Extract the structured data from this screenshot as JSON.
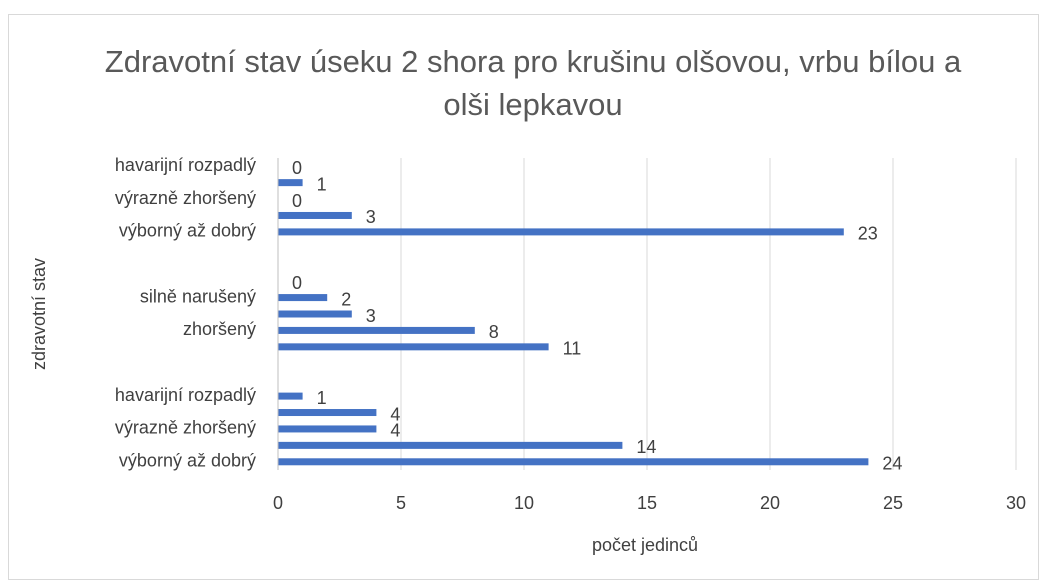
{
  "chart_data": {
    "type": "barh",
    "title": "Zdravotní stav úseku 2 shora pro krušinu olšovou, vrbu bílou a olši lepkavou",
    "x_label": "počet jedinců",
    "y_label": "zdravotní stav",
    "categories": [
      "havarijní rozpadlý",
      null,
      "výrazně zhoršený",
      null,
      "výborný až dobrý",
      null,
      null,
      null,
      "silně narušený ",
      null,
      "zhoršený",
      null,
      null,
      null,
      "havarijní rozpadlý",
      null,
      "výrazně zhoršený",
      null,
      "výborný až dobrý"
    ],
    "values": [
      0,
      1,
      0,
      3,
      23,
      null,
      null,
      0,
      2,
      3,
      8,
      11,
      null,
      null,
      1,
      4,
      4,
      14,
      24
    ],
    "color": "#4472c4",
    "xlim": [
      0,
      30
    ],
    "xticks": [
      0,
      5,
      10,
      15,
      20,
      25,
      30
    ],
    "grid": true
  }
}
